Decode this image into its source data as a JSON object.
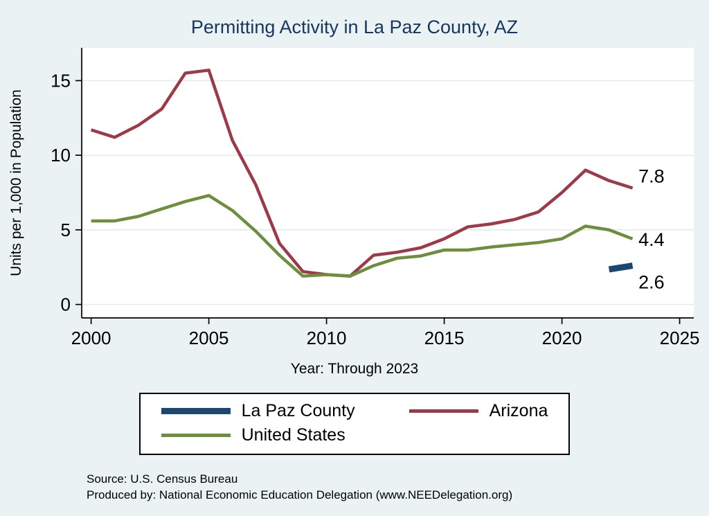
{
  "colors": {
    "background": "#eaf2f3",
    "plot_background": "#ffffff",
    "title": "#17365d",
    "grid": "#dfeaec",
    "axis": "#000000",
    "la_paz": "#1a476f",
    "arizona": "#9e3a47",
    "united_states": "#6d8f3d"
  },
  "chart_data": {
    "type": "line",
    "title": "Permitting Activity in La Paz County, AZ",
    "ylabel": "Units per 1,000 in Population",
    "xlabel": "Year: Through 2023",
    "xlim": [
      1999.6,
      2025.6
    ],
    "ylim": [
      -0.9,
      17.2
    ],
    "x_ticks": [
      "2000",
      "2005",
      "2010",
      "2015",
      "2020",
      "2025"
    ],
    "x_tick_values": [
      2000,
      2005,
      2010,
      2015,
      2020,
      2025
    ],
    "y_ticks": [
      "0",
      "5",
      "10",
      "15"
    ],
    "y_tick_values": [
      0,
      5,
      10,
      15
    ],
    "grid_y": [
      0,
      5,
      10,
      15
    ],
    "legend_position": "bottom",
    "series": [
      {
        "name": "La Paz County",
        "color": "#1a476f",
        "line_width": 9,
        "x": [
          2022,
          2023
        ],
        "values": [
          2.35,
          2.6
        ]
      },
      {
        "name": "Arizona",
        "color": "#9e3a47",
        "line_width": 4.5,
        "x": [
          2000,
          2001,
          2002,
          2003,
          2004,
          2005,
          2006,
          2007,
          2008,
          2009,
          2010,
          2011,
          2012,
          2013,
          2014,
          2015,
          2016,
          2017,
          2018,
          2019,
          2020,
          2021,
          2022,
          2023
        ],
        "values": [
          11.7,
          11.2,
          12.0,
          13.1,
          15.5,
          15.7,
          11.0,
          8.0,
          4.1,
          2.2,
          2.0,
          1.9,
          3.3,
          3.5,
          3.8,
          4.4,
          5.2,
          5.4,
          5.7,
          6.2,
          7.5,
          9.0,
          8.3,
          7.8
        ]
      },
      {
        "name": "United States",
        "color": "#6d8f3d",
        "line_width": 4.5,
        "x": [
          2000,
          2001,
          2002,
          2003,
          2004,
          2005,
          2006,
          2007,
          2008,
          2009,
          2010,
          2011,
          2012,
          2013,
          2014,
          2015,
          2016,
          2017,
          2018,
          2019,
          2020,
          2021,
          2022,
          2023
        ],
        "values": [
          5.6,
          5.6,
          5.9,
          6.4,
          6.9,
          7.3,
          6.3,
          4.9,
          3.3,
          1.9,
          2.0,
          1.9,
          2.6,
          3.1,
          3.25,
          3.65,
          3.65,
          3.85,
          4.0,
          4.15,
          4.4,
          5.25,
          5.0,
          4.4
        ]
      }
    ],
    "end_labels": [
      {
        "text": "7.8",
        "x": 2023.25,
        "y": 8.6
      },
      {
        "text": "4.4",
        "x": 2023.25,
        "y": 4.35
      },
      {
        "text": "2.6",
        "x": 2023.25,
        "y": 1.5
      }
    ],
    "legend": [
      {
        "label": "La Paz County",
        "color": "#1a476f",
        "line_width": 9
      },
      {
        "label": "Arizona",
        "color": "#9e3a47",
        "line_width": 5
      },
      {
        "label": "United States",
        "color": "#6d8f3d",
        "line_width": 5
      }
    ]
  },
  "notes": {
    "source": "Source: U.S. Census Bureau",
    "produced": "Produced by: National Economic Education Delegation (www.NEEDelegation.org)"
  }
}
